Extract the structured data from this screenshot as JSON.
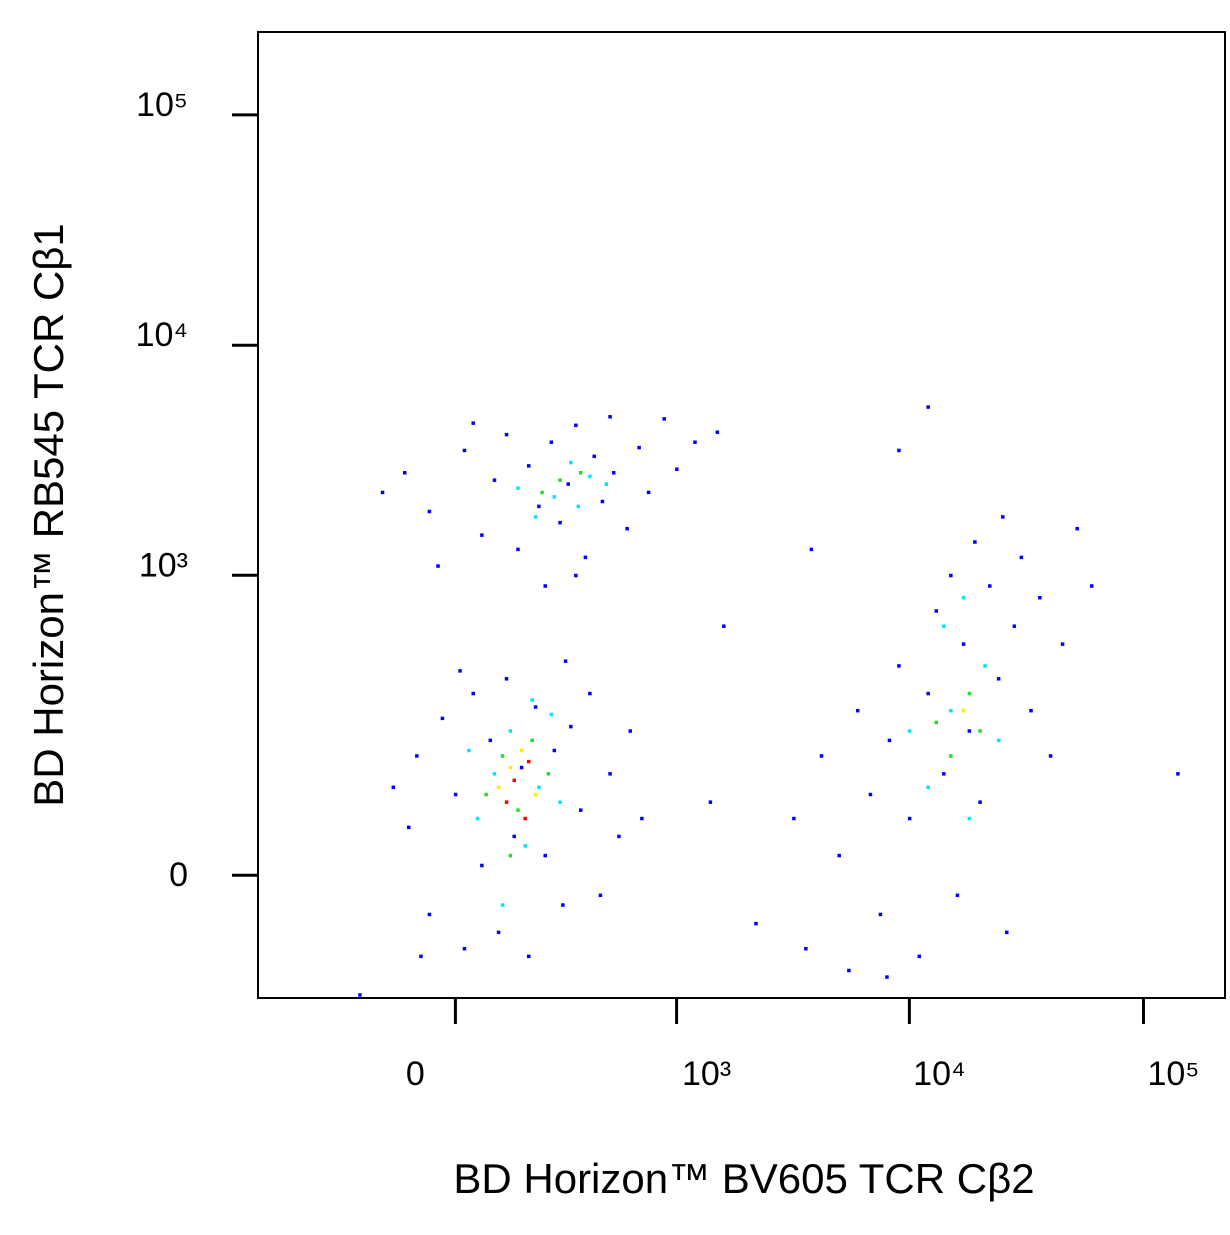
{
  "chart_data": {
    "type": "scatter",
    "xlabel": "BD Horizon™ BV605 TCR Cβ2",
    "ylabel": "BD Horizon™ RB545 TCR Cβ1",
    "xscale": "asinh",
    "xcofactor": 230,
    "yscale": "asinh",
    "ycofactor": 100,
    "xlim": [
      -785,
      223000
    ],
    "ylim": [
      -156,
      229000
    ],
    "xticks": [
      0,
      {
        "value": 1000,
        "label": "10³"
      },
      {
        "value": 10000,
        "label": "10⁴"
      },
      {
        "value": 100000,
        "label": "10⁵"
      }
    ],
    "yticks": [
      0,
      {
        "value": 1000,
        "label": "10³"
      },
      {
        "value": 10000,
        "label": "10⁴"
      },
      {
        "value": 100000,
        "label": "10⁵"
      }
    ],
    "series": [
      {
        "color": "#0000ff",
        "x": [
          -120,
          -60,
          20,
          60,
          90,
          120,
          150,
          180,
          210,
          250,
          280,
          310,
          340,
          380,
          420,
          460,
          520,
          600,
          680,
          750,
          880,
          1000,
          1200,
          1500,
          -40,
          40,
          230,
          500,
          340,
          -180,
          -110,
          -90,
          -60,
          -30,
          0,
          20,
          40,
          60,
          80,
          100,
          120,
          140,
          160,
          180,
          200,
          230,
          260,
          290,
          320,
          360,
          400,
          450,
          500,
          550,
          620,
          -80,
          10,
          300,
          700,
          -150,
          1400,
          2200,
          1600,
          -250,
          3200,
          3600,
          4200,
          5000,
          5500,
          6000,
          6800,
          7500,
          8200,
          9000,
          10000,
          11000,
          12000,
          13000,
          14000,
          15000,
          16000,
          17000,
          18000,
          19000,
          20000,
          22000,
          24000,
          26000,
          28000,
          30000,
          33000,
          36000,
          40000,
          45000,
          52000,
          8000,
          25000,
          60000,
          12000,
          9000,
          3800,
          140000
        ],
        "y": [
          2800,
          1900,
          3500,
          1500,
          2600,
          4100,
          1300,
          3000,
          2000,
          3800,
          1700,
          2500,
          4500,
          1200,
          3300,
          2100,
          2800,
          1600,
          3600,
          2300,
          4800,
          2900,
          3800,
          4200,
          1100,
          4600,
          900,
          4900,
          1000,
          2300,
          50,
          150,
          -40,
          230,
          90,
          -80,
          300,
          10,
          180,
          -60,
          350,
          40,
          130,
          -90,
          260,
          20,
          160,
          -30,
          210,
          70,
          300,
          -20,
          120,
          40,
          200,
          -90,
          380,
          420,
          60,
          100,
          80,
          -50,
          600,
          -150,
          60,
          -80,
          150,
          20,
          -110,
          250,
          90,
          -40,
          180,
          400,
          60,
          -90,
          300,
          700,
          120,
          1000,
          -20,
          500,
          200,
          1400,
          80,
          900,
          350,
          -60,
          600,
          1200,
          250,
          800,
          150,
          500,
          1600,
          -120,
          1800,
          900,
          5400,
          3500,
          1300,
          120
        ]
      },
      {
        "color": "#00e5ff",
        "x": [
          150,
          260,
          320,
          400,
          200,
          480,
          350,
          50,
          90,
          130,
          170,
          210,
          30,
          250,
          110,
          280,
          190,
          12000,
          15000,
          18000,
          21000,
          14000,
          24000,
          17000,
          10000
        ],
        "y": [
          2400,
          2200,
          3100,
          2700,
          1800,
          2500,
          2000,
          60,
          120,
          200,
          30,
          100,
          160,
          240,
          -30,
          80,
          280,
          100,
          250,
          60,
          400,
          600,
          180,
          800,
          200
        ]
      },
      {
        "color": "#22dd22",
        "x": [
          280,
          220,
          360,
          70,
          110,
          150,
          190,
          240,
          130,
          15000,
          18000,
          20000,
          13000
        ],
        "y": [
          2600,
          2300,
          2800,
          90,
          150,
          70,
          180,
          120,
          20,
          150,
          300,
          200,
          220
        ]
      },
      {
        "color": "#ffee00",
        "x": [
          100,
          160,
          200,
          130,
          17000
        ],
        "y": [
          100,
          160,
          90,
          130,
          250
        ]
      },
      {
        "color": "#ff0000",
        "x": [
          140,
          180,
          120,
          170
        ],
        "y": [
          110,
          140,
          80,
          60
        ]
      }
    ]
  }
}
